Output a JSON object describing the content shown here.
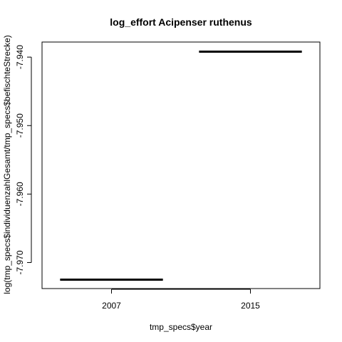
{
  "chart_data": {
    "type": "box",
    "title": "log_effort Acipenser ruthenus",
    "xlabel": "tmp_specs$year",
    "ylabel": "log(tmp_specs$individuenzahlGesamt/tmp_specs$befischteStrecke)",
    "categories": [
      "2007",
      "2015"
    ],
    "values": [
      -7.9725,
      -7.9392
    ],
    "ylim": [
      -7.9738,
      -7.9378
    ],
    "yticks": [
      -7.97,
      -7.96,
      -7.95,
      -7.94
    ],
    "ytick_labels": [
      "-7.970",
      "-7.960",
      "-7.950",
      "-7.940"
    ],
    "grid": false,
    "legend": "none",
    "colors": {
      "line": "#000000",
      "frame": "#000000",
      "background": "#ffffff"
    }
  }
}
